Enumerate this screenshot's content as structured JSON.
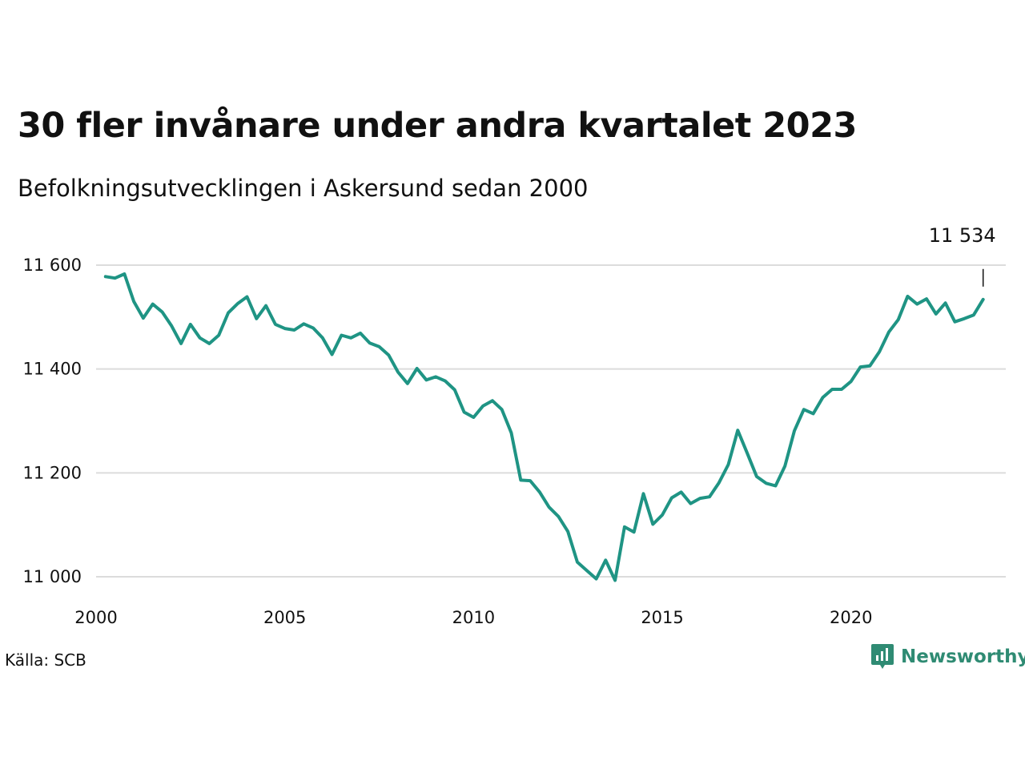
{
  "chart_data": {
    "type": "line",
    "title": "30 fler invånare under andra kvartalet 2023",
    "subtitle": "Befolkningsutvecklingen i Askersund sedan 2000",
    "xlabel": "",
    "ylabel": "",
    "x_range": [
      2000,
      2024.1
    ],
    "ylim": [
      10990,
      11610
    ],
    "y_ticks": [
      11000,
      11200,
      11400,
      11600
    ],
    "y_tick_labels": [
      "11 000",
      "11 200",
      "11 400",
      "11 600"
    ],
    "x_ticks": [
      2000,
      2005,
      2010,
      2015,
      2020
    ],
    "x_tick_labels": [
      "2000",
      "2005",
      "2010",
      "2015",
      "2020"
    ],
    "grid": "horizontal",
    "line_color": "#1f9484",
    "last_value_label": "11 534",
    "series": [
      {
        "x": [
          2000.25,
          2000.5,
          2000.75,
          2001,
          2001.25,
          2001.5,
          2001.75,
          2002,
          2002.25,
          2002.5,
          2002.75,
          2003,
          2003.25,
          2003.5,
          2003.75,
          2004,
          2004.25,
          2004.5,
          2004.75,
          2005,
          2005.25,
          2005.5,
          2005.75,
          2006,
          2006.25,
          2006.5,
          2006.75,
          2007,
          2007.25,
          2007.5,
          2007.75,
          2008,
          2008.25,
          2008.5,
          2008.75,
          2009,
          2009.25,
          2009.5,
          2009.75,
          2010,
          2010.25,
          2010.5,
          2010.75,
          2011,
          2011.25,
          2011.5,
          2011.75,
          2012,
          2012.25,
          2012.5,
          2012.75,
          2013,
          2013.25,
          2013.5,
          2013.75,
          2014,
          2014.25,
          2014.5,
          2014.75,
          2015,
          2015.25,
          2015.5,
          2015.75,
          2016,
          2016.25,
          2016.5,
          2016.75,
          2017,
          2017.25,
          2017.5,
          2017.75,
          2018,
          2018.25,
          2018.5,
          2018.75,
          2019,
          2019.25,
          2019.5,
          2019.75,
          2020,
          2020.25,
          2020.5,
          2020.75,
          2021,
          2021.25,
          2021.5,
          2021.75,
          2022,
          2022.25,
          2022.5,
          2022.75,
          2023,
          2023.25,
          2023.5
        ],
        "values": [
          11578,
          11575,
          11583,
          11530,
          11498,
          11525,
          11510,
          11483,
          11449,
          11486,
          11460,
          11449,
          11465,
          11508,
          11526,
          11539,
          11497,
          11522,
          11486,
          11478,
          11475,
          11487,
          11479,
          11460,
          11428,
          11465,
          11460,
          11469,
          11450,
          11443,
          11427,
          11394,
          11372,
          11401,
          11379,
          11385,
          11377,
          11360,
          11317,
          11307,
          11329,
          11339,
          11322,
          11277,
          11186,
          11185,
          11163,
          11134,
          11116,
          11087,
          11028,
          11012,
          10996,
          11032,
          10993,
          11096,
          11086,
          11160,
          11101,
          11119,
          11152,
          11163,
          11141,
          11151,
          11154,
          11181,
          11216,
          11282,
          11238,
          11193,
          11180,
          11175,
          11213,
          11281,
          11322,
          11314,
          11345,
          11361,
          11361,
          11376,
          11404,
          11406,
          11433,
          11471,
          11495,
          11540,
          11525,
          11535,
          11506,
          11527,
          11491,
          11497,
          11504,
          11534
        ]
      }
    ]
  },
  "footer": {
    "source": "Källa: SCB",
    "brand": "Newsworthy",
    "brand_color": "#2f8b73",
    "brand_icon": "bar-chart-badge-icon"
  }
}
